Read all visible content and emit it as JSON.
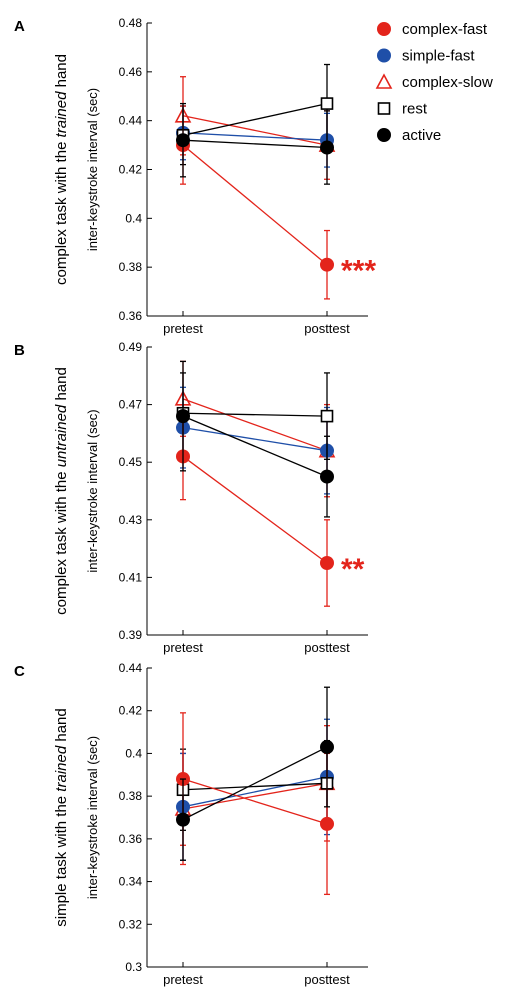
{
  "legend": [
    {
      "key": "complex_fast",
      "label": "complex-fast",
      "color": "#e3241b",
      "marker": "filled-circle"
    },
    {
      "key": "simple_fast",
      "label": "simple-fast",
      "color": "#1f4fa8",
      "marker": "filled-circle"
    },
    {
      "key": "complex_slow",
      "label": "complex-slow",
      "color": "#e3241b",
      "marker": "open-triangle"
    },
    {
      "key": "rest",
      "label": "rest",
      "color": "#000000",
      "marker": "open-square"
    },
    {
      "key": "active",
      "label": "active",
      "color": "#000000",
      "marker": "filled-circle"
    }
  ],
  "chart_data": [
    {
      "type": "line",
      "panel": "A",
      "row_title_parts": [
        "complex task with the ",
        "trained",
        " hand"
      ],
      "ylabel": "inter-keystroke interval (sec)",
      "categories": [
        "pretest",
        "posttest"
      ],
      "ylim": [
        0.36,
        0.48
      ],
      "yticks": [
        0.36,
        0.38,
        0.4,
        0.42,
        0.44,
        0.46,
        0.48
      ],
      "ytick_labels": [
        "0.36",
        "0.38",
        "0.4",
        "0.42",
        "0.44",
        "0.46",
        "0.48"
      ],
      "series": [
        {
          "name": "complex-fast",
          "values": [
            0.43,
            0.381
          ],
          "errors": [
            0.016,
            0.014
          ]
        },
        {
          "name": "simple-fast",
          "values": [
            0.435,
            0.432
          ],
          "errors": [
            0.011,
            0.011
          ]
        },
        {
          "name": "complex-slow",
          "values": [
            0.442,
            0.43
          ],
          "errors": [
            0.016,
            0.014
          ]
        },
        {
          "name": "rest",
          "values": [
            0.434,
            0.447
          ],
          "errors": [
            0.012,
            0.016
          ]
        },
        {
          "name": "active",
          "values": [
            0.432,
            0.429
          ],
          "errors": [
            0.015,
            0.015
          ]
        }
      ],
      "annotation": {
        "text": "***",
        "series": "complex-fast",
        "point": 1
      }
    },
    {
      "type": "line",
      "panel": "B",
      "row_title_parts": [
        "complex task with the ",
        "untrained",
        " hand"
      ],
      "ylabel": "inter-keystroke interval (sec)",
      "categories": [
        "pretest",
        "posttest"
      ],
      "ylim": [
        0.39,
        0.49
      ],
      "yticks": [
        0.39,
        0.41,
        0.43,
        0.45,
        0.47,
        0.49
      ],
      "ytick_labels": [
        "0.39",
        "0.41",
        "0.43",
        "0.45",
        "0.47",
        "0.49"
      ],
      "series": [
        {
          "name": "complex-fast",
          "values": [
            0.452,
            0.415
          ],
          "errors": [
            0.015,
            0.015
          ]
        },
        {
          "name": "simple-fast",
          "values": [
            0.462,
            0.454
          ],
          "errors": [
            0.014,
            0.015
          ]
        },
        {
          "name": "complex-slow",
          "values": [
            0.472,
            0.454
          ],
          "errors": [
            0.013,
            0.016
          ]
        },
        {
          "name": "rest",
          "values": [
            0.467,
            0.466
          ],
          "errors": [
            0.014,
            0.015
          ]
        },
        {
          "name": "active",
          "values": [
            0.466,
            0.445
          ],
          "errors": [
            0.019,
            0.014
          ]
        }
      ],
      "annotation": {
        "text": "**",
        "series": "complex-fast",
        "point": 1
      }
    },
    {
      "type": "line",
      "panel": "C",
      "row_title_parts": [
        "simple task with the ",
        "trained",
        " hand"
      ],
      "ylabel": "inter-keystroke interval (sec)",
      "categories": [
        "pretest",
        "posttest"
      ],
      "ylim": [
        0.3,
        0.44
      ],
      "yticks": [
        0.3,
        0.32,
        0.34,
        0.36,
        0.38,
        0.4,
        0.42,
        0.44
      ],
      "ytick_labels": [
        "0.3",
        "0.32",
        "0.34",
        "0.36",
        "0.38",
        "0.4",
        "0.42",
        "0.44"
      ],
      "series": [
        {
          "name": "complex-fast",
          "values": [
            0.388,
            0.367
          ],
          "errors": [
            0.031,
            0.033
          ]
        },
        {
          "name": "simple-fast",
          "values": [
            0.375,
            0.389
          ],
          "errors": [
            0.025,
            0.027
          ]
        },
        {
          "name": "complex-slow",
          "values": [
            0.374,
            0.386
          ],
          "errors": [
            0.026,
            0.027
          ]
        },
        {
          "name": "rest",
          "values": [
            0.383,
            0.386
          ],
          "errors": [
            0.019,
            0.02
          ]
        },
        {
          "name": "active",
          "values": [
            0.369,
            0.403
          ],
          "errors": [
            0.019,
            0.028
          ]
        }
      ]
    }
  ]
}
